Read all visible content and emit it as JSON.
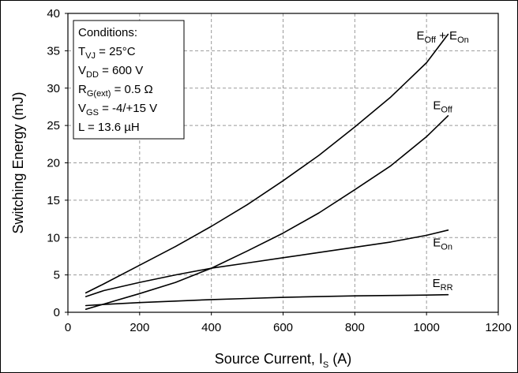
{
  "chart_data": {
    "type": "line",
    "xlabel": {
      "main": "Source Current, I",
      "sub": "S",
      "suffix": " (A)"
    },
    "ylabel": "Switching Energy (mJ)",
    "xlim": [
      0,
      1200
    ],
    "ylim": [
      0,
      40
    ],
    "xticks": [
      0,
      200,
      400,
      600,
      800,
      1000,
      1200
    ],
    "yticks": [
      0,
      5,
      10,
      15,
      20,
      25,
      30,
      35,
      40
    ],
    "grid": true,
    "conditions": {
      "title": "Conditions:",
      "lines": [
        {
          "main": "T",
          "sub": "VJ",
          "rest": " = 25°C"
        },
        {
          "main": "V",
          "sub": "DD",
          "rest": " = 600 V"
        },
        {
          "main": "R",
          "sub": "G(ext)",
          "rest": " = 0.5 Ω"
        },
        {
          "main": "V",
          "sub": "GS",
          "rest": " = -4/+15 V"
        },
        {
          "main": "L = 13.6 µH",
          "sub": "",
          "rest": ""
        }
      ]
    },
    "series": [
      {
        "name": "E_Off + E_On",
        "label_parts": [
          {
            "t": "E",
            "s": "Off"
          },
          {
            "t": " + E",
            "s": "On"
          }
        ],
        "label_at": [
          1045,
          36.5
        ],
        "x": [
          50,
          100,
          200,
          300,
          400,
          500,
          600,
          700,
          800,
          900,
          1000,
          1060
        ],
        "y": [
          2.6,
          3.8,
          6.3,
          8.8,
          11.5,
          14.4,
          17.6,
          21.0,
          24.8,
          28.8,
          33.4,
          37.2
        ]
      },
      {
        "name": "E_Off",
        "label_parts": [
          {
            "t": "E",
            "s": "Off"
          }
        ],
        "label_at": [
          1045,
          27.2
        ],
        "x": [
          50,
          100,
          200,
          300,
          400,
          500,
          600,
          700,
          800,
          900,
          1000,
          1060
        ],
        "y": [
          0.4,
          1.1,
          2.5,
          4.0,
          5.9,
          8.2,
          10.6,
          13.3,
          16.4,
          19.6,
          23.5,
          26.3
        ]
      },
      {
        "name": "E_On",
        "label_parts": [
          {
            "t": "E",
            "s": "On"
          }
        ],
        "label_at": [
          1045,
          8.8
        ],
        "x": [
          50,
          100,
          200,
          300,
          400,
          500,
          600,
          700,
          800,
          900,
          1000,
          1060
        ],
        "y": [
          2.1,
          2.9,
          4.0,
          5.0,
          5.9,
          6.6,
          7.3,
          8.0,
          8.7,
          9.4,
          10.3,
          11.0
        ]
      },
      {
        "name": "E_RR",
        "label_parts": [
          {
            "t": "E",
            "s": "RR"
          }
        ],
        "label_at": [
          1045,
          3.4
        ],
        "x": [
          50,
          100,
          200,
          300,
          400,
          500,
          600,
          700,
          800,
          900,
          1000,
          1060
        ],
        "y": [
          0.9,
          1.05,
          1.3,
          1.5,
          1.7,
          1.85,
          2.0,
          2.1,
          2.2,
          2.25,
          2.3,
          2.35
        ]
      }
    ]
  }
}
